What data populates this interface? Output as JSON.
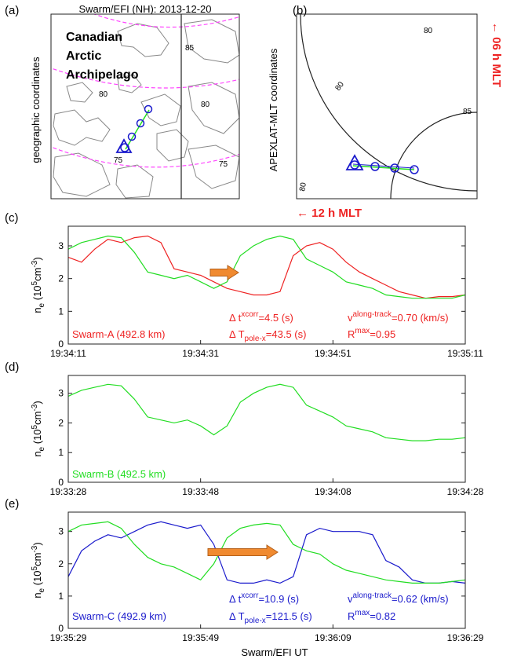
{
  "colors": {
    "swarmA": "#ee2222",
    "swarmB": "#22dd22",
    "swarmC": "#1a1acc",
    "contour": "#ff44ff",
    "arrow": "#f08a30",
    "mlt": "#ee2222",
    "land": "#888888"
  },
  "panel_a": {
    "label": "(a)",
    "title": "Swarm/EFI (NH): 2013-12-20",
    "ylabel": "geographic coordinates",
    "region_lines": [
      "Canadian",
      "Arctic",
      "Archipelago"
    ],
    "contour_labels": [
      "85",
      "80",
      "80",
      "75",
      "75"
    ]
  },
  "panel_b": {
    "label": "(b)",
    "ylabel": "APEXLAT-MLT coordinates",
    "contour_labels": [
      "80",
      "80",
      "85",
      "80"
    ],
    "mlt_top": "← 06 h MLT",
    "mlt_bottom": "← 12 h MLT"
  },
  "xlabel": "Swarm/EFI UT",
  "chart_data": [
    {
      "type": "line",
      "label": "(c)",
      "ylabel": "n_e (10^5 cm^-3)",
      "ylim": [
        0,
        3.6
      ],
      "yticks": [
        0,
        1,
        2,
        3
      ],
      "xtick_labels": [
        "19:34:11",
        "19:34:31",
        "19:34:51",
        "19:35:11"
      ],
      "xlim": [
        0,
        60
      ],
      "series": [
        {
          "name": "Swarm-A (492.8 km)",
          "color": "#ee2222",
          "x": [
            0,
            2,
            4,
            6,
            8,
            10,
            12,
            14,
            16,
            18,
            20,
            22,
            24,
            26,
            28,
            30,
            32,
            34,
            36,
            38,
            40,
            42,
            44,
            46,
            48,
            50,
            52,
            54,
            56,
            58,
            60
          ],
          "y": [
            2.65,
            2.5,
            2.9,
            3.2,
            3.1,
            3.25,
            3.3,
            3.1,
            2.3,
            2.2,
            2.1,
            1.9,
            1.7,
            1.6,
            1.5,
            1.5,
            1.6,
            2.7,
            3.0,
            3.1,
            2.9,
            2.5,
            2.2,
            2.0,
            1.8,
            1.6,
            1.5,
            1.4,
            1.45,
            1.45,
            1.5
          ]
        },
        {
          "name": "",
          "color": "#22dd22",
          "x": [
            0,
            2,
            4,
            6,
            8,
            10,
            12,
            14,
            16,
            18,
            20,
            22,
            24,
            26,
            28,
            30,
            32,
            34,
            36,
            38,
            40,
            42,
            44,
            46,
            48,
            50,
            52,
            54,
            56,
            58,
            60
          ],
          "y": [
            2.9,
            3.1,
            3.2,
            3.3,
            3.25,
            2.8,
            2.2,
            2.1,
            2.0,
            2.1,
            1.9,
            1.7,
            1.9,
            2.7,
            3.0,
            3.2,
            3.3,
            3.2,
            2.6,
            2.4,
            2.2,
            1.9,
            1.8,
            1.7,
            1.5,
            1.45,
            1.4,
            1.4,
            1.4,
            1.4,
            1.5
          ]
        }
      ],
      "annotations": [
        "Swarm-A (492.8 km)",
        "Δ t^xcorr=4.5 (s)",
        "Δ T_pole-x=43.5 (s)",
        "v^along-track=0.70 (km/s)",
        "R^max=0.95"
      ]
    },
    {
      "type": "line",
      "label": "(d)",
      "ylabel": "n_e (10^5 cm^-3)",
      "ylim": [
        0,
        3.6
      ],
      "yticks": [
        0,
        1,
        2,
        3
      ],
      "xtick_labels": [
        "19:33:28",
        "19:33:48",
        "19:34:08",
        "19:34:28"
      ],
      "xlim": [
        0,
        60
      ],
      "series": [
        {
          "name": "Swarm-B (492.5 km)",
          "color": "#22dd22",
          "x": [
            0,
            2,
            4,
            6,
            8,
            10,
            12,
            14,
            16,
            18,
            20,
            22,
            24,
            26,
            28,
            30,
            32,
            34,
            36,
            38,
            40,
            42,
            44,
            46,
            48,
            50,
            52,
            54,
            56,
            58,
            60
          ],
          "y": [
            2.9,
            3.1,
            3.2,
            3.3,
            3.25,
            2.8,
            2.2,
            2.1,
            2.0,
            2.1,
            1.9,
            1.6,
            1.9,
            2.7,
            3.0,
            3.2,
            3.3,
            3.2,
            2.6,
            2.4,
            2.2,
            1.9,
            1.8,
            1.7,
            1.5,
            1.45,
            1.4,
            1.4,
            1.45,
            1.45,
            1.5
          ]
        }
      ],
      "annotations": [
        "Swarm-B (492.5 km)"
      ]
    },
    {
      "type": "line",
      "label": "(e)",
      "ylabel": "n_e (10^5 cm^-3)",
      "ylim": [
        0,
        3.6
      ],
      "yticks": [
        0,
        1,
        2,
        3
      ],
      "xtick_labels": [
        "19:35:29",
        "19:35:49",
        "19:36:09",
        "19:36:29"
      ],
      "xlim": [
        0,
        60
      ],
      "series": [
        {
          "name": "Swarm-C (492.9 km)",
          "color": "#1a1acc",
          "x": [
            0,
            2,
            4,
            6,
            8,
            10,
            12,
            14,
            16,
            18,
            20,
            22,
            24,
            26,
            28,
            30,
            32,
            34,
            36,
            38,
            40,
            42,
            44,
            46,
            48,
            50,
            52,
            54,
            56,
            58,
            60
          ],
          "y": [
            1.6,
            2.4,
            2.7,
            2.9,
            2.8,
            3.0,
            3.2,
            3.3,
            3.2,
            3.1,
            3.2,
            2.6,
            1.5,
            1.4,
            1.4,
            1.5,
            1.4,
            1.6,
            2.9,
            3.1,
            3.0,
            3.0,
            3.0,
            2.9,
            2.1,
            1.9,
            1.5,
            1.4,
            1.4,
            1.45,
            1.4
          ]
        },
        {
          "name": "",
          "color": "#22dd22",
          "x": [
            0,
            2,
            4,
            6,
            8,
            10,
            12,
            14,
            16,
            18,
            20,
            22,
            24,
            26,
            28,
            30,
            32,
            34,
            36,
            38,
            40,
            42,
            44,
            46,
            48,
            50,
            52,
            54,
            56,
            58,
            60
          ],
          "y": [
            3.0,
            3.2,
            3.25,
            3.3,
            3.1,
            2.6,
            2.2,
            2.0,
            1.9,
            1.7,
            1.5,
            2.0,
            2.8,
            3.1,
            3.2,
            3.25,
            3.2,
            2.6,
            2.4,
            2.3,
            2.0,
            1.8,
            1.7,
            1.6,
            1.5,
            1.45,
            1.4,
            1.4,
            1.4,
            1.45,
            1.5
          ]
        }
      ],
      "annotations": [
        "Swarm-C (492.9 km)",
        "Δ t^xcorr=10.9 (s)",
        "Δ T_pole-x=121.5 (s)",
        "v^along-track=0.62 (km/s)",
        "R^max=0.82"
      ]
    }
  ]
}
